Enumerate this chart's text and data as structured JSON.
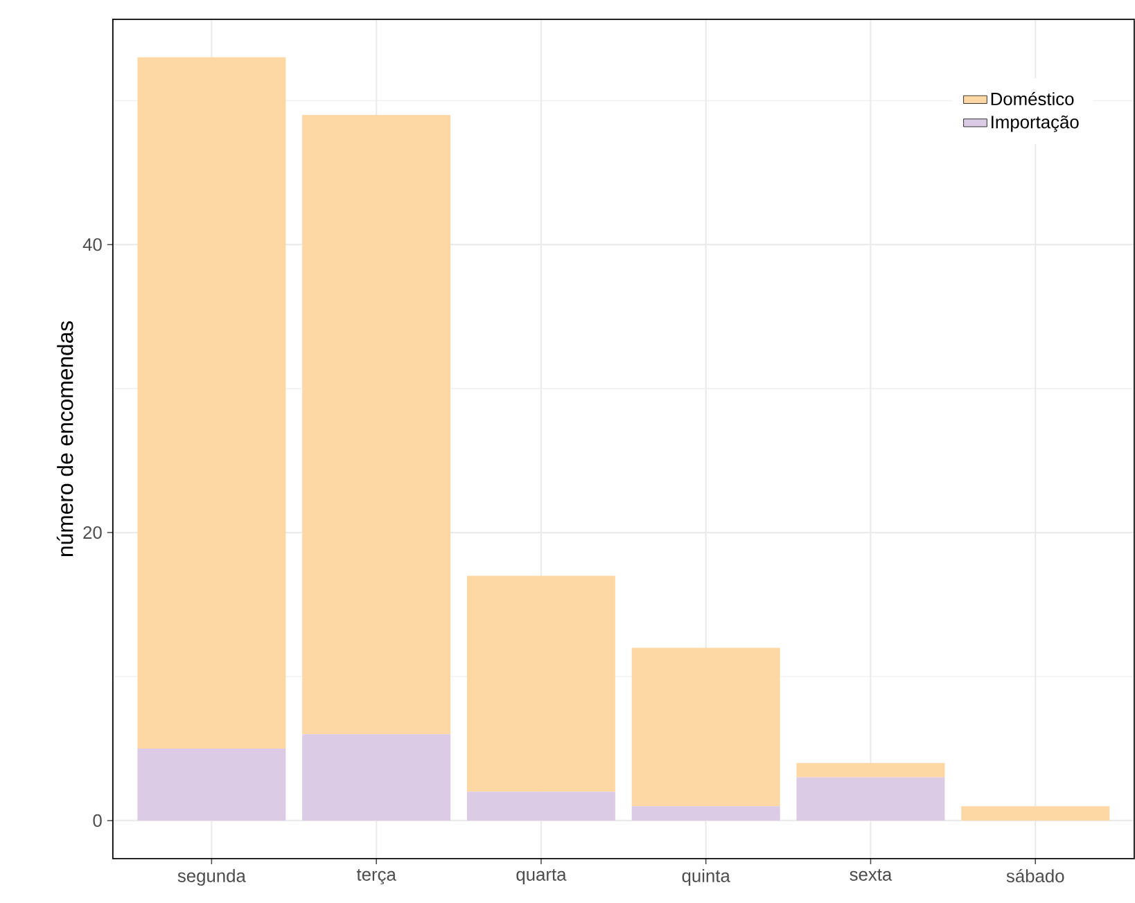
{
  "chart_data": {
    "type": "bar",
    "stacked": true,
    "ylabel": "número de encomendas",
    "categories": [
      "segunda",
      "terça",
      "quarta",
      "quinta",
      "sexta",
      "sábado"
    ],
    "series": [
      {
        "name": "Importação",
        "color": "#dccbe4",
        "values": [
          5,
          6,
          2,
          1,
          3,
          0
        ]
      },
      {
        "name": "Doméstico",
        "color": "#fdd8a4",
        "values": [
          48,
          43,
          15,
          11,
          1,
          1
        ]
      }
    ],
    "ylim": [
      -2.65,
      55.65
    ],
    "yticks": [
      0,
      20,
      40
    ],
    "grid": true,
    "legend": "top right"
  }
}
